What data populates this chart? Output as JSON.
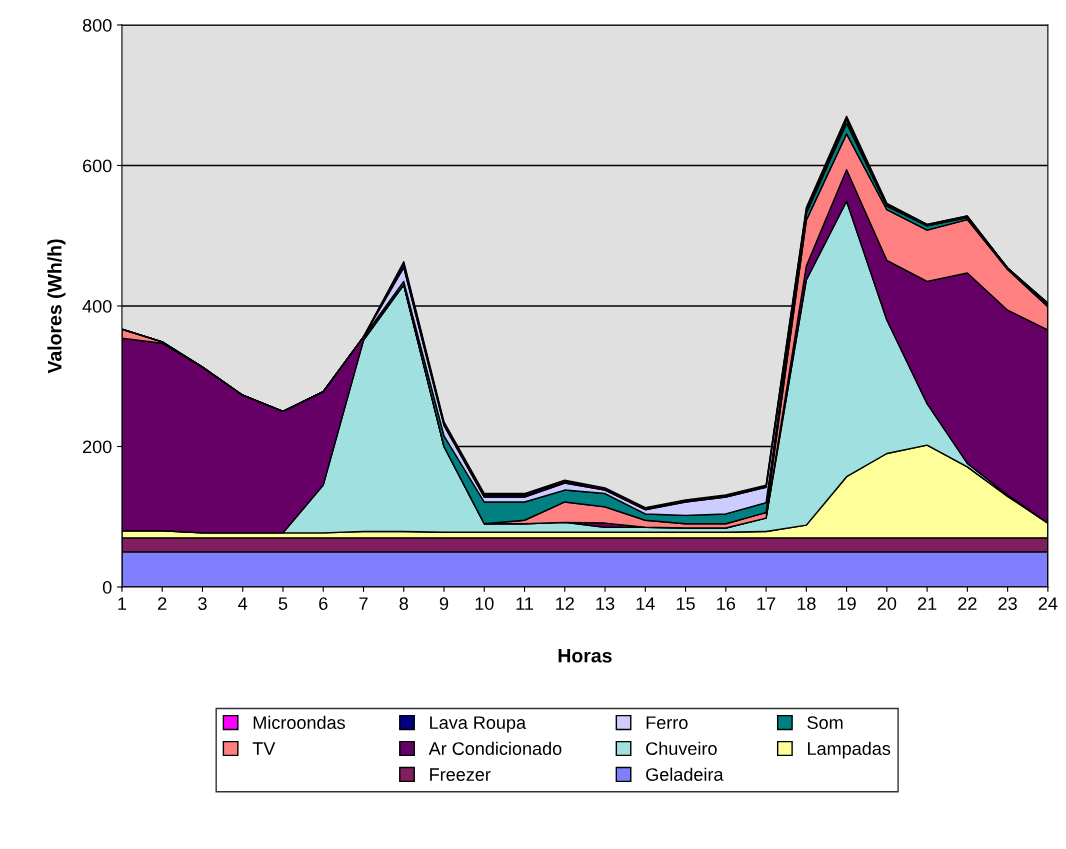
{
  "chart_data": {
    "type": "area",
    "stacked": true,
    "xlabel": "Horas",
    "ylabel": "Valores (Wh/h)",
    "x": [
      1,
      2,
      3,
      4,
      5,
      6,
      7,
      8,
      9,
      10,
      11,
      12,
      13,
      14,
      15,
      16,
      17,
      18,
      19,
      20,
      21,
      22,
      23,
      24
    ],
    "xlim": [
      1,
      24
    ],
    "xticks": [
      1,
      2,
      3,
      4,
      5,
      6,
      7,
      8,
      9,
      10,
      11,
      12,
      13,
      14,
      15,
      16,
      17,
      18,
      19,
      20,
      21,
      22,
      23,
      24
    ],
    "ylim": [
      0,
      800
    ],
    "yticks": [
      0,
      200,
      400,
      600,
      800
    ],
    "grid": "y",
    "legend": "bottom",
    "series": [
      {
        "name": "Geladeira",
        "color": "#8080ff",
        "values": [
          50,
          50,
          50,
          50,
          50,
          50,
          50,
          50,
          50,
          50,
          50,
          50,
          50,
          50,
          50,
          50,
          50,
          50,
          50,
          50,
          50,
          50,
          50,
          50
        ]
      },
      {
        "name": "Freezer",
        "color": "#7f1f5f",
        "values": [
          20,
          20,
          20,
          20,
          20,
          20,
          20,
          20,
          20,
          20,
          20,
          20,
          20,
          20,
          20,
          20,
          20,
          20,
          20,
          20,
          20,
          20,
          20,
          20
        ]
      },
      {
        "name": "Lampadas",
        "color": "#ffff99",
        "values": [
          10,
          10,
          7,
          7,
          7,
          7,
          9,
          9,
          8,
          8,
          8,
          8,
          8,
          8,
          8,
          8,
          9,
          18,
          87,
          120,
          132,
          101,
          59,
          21
        ]
      },
      {
        "name": "Chuveiro",
        "color": "#a0e0e0",
        "values": [
          0,
          0,
          0,
          0,
          0,
          68,
          272,
          351,
          122,
          12,
          12,
          14,
          7,
          7,
          6,
          6,
          19,
          349,
          392,
          190,
          59,
          5,
          2,
          0
        ]
      },
      {
        "name": "Ar Condicionado",
        "color": "#660066",
        "values": [
          274,
          267,
          236,
          196,
          173,
          133,
          5,
          0,
          0,
          0,
          0,
          0,
          6,
          0,
          0,
          0,
          0,
          20,
          45,
          85,
          174,
          271,
          263,
          275
        ]
      },
      {
        "name": "TV",
        "color": "#ff8080",
        "values": [
          13,
          2,
          0,
          0,
          0,
          0,
          0,
          0,
          0,
          0,
          5,
          29,
          23,
          10,
          6,
          6,
          8,
          65,
          51,
          72,
          73,
          76,
          58,
          33
        ]
      },
      {
        "name": "Som",
        "color": "#008080",
        "values": [
          0,
          0,
          0,
          0,
          0,
          0,
          0,
          5,
          15,
          31,
          26,
          17,
          19,
          9,
          12,
          14,
          14,
          10,
          15,
          5,
          6,
          3,
          2,
          3
        ]
      },
      {
        "name": "Ferro",
        "color": "#ccccff",
        "values": [
          0,
          0,
          0,
          0,
          0,
          0,
          0,
          20,
          15,
          7,
          7,
          10,
          5,
          6,
          19,
          24,
          22,
          4,
          5,
          2,
          1,
          1,
          0,
          1
        ]
      },
      {
        "name": "Lava Roupa",
        "color": "#000080",
        "values": [
          0,
          0,
          0,
          0,
          0,
          0,
          0,
          6,
          3,
          3,
          3,
          2,
          1,
          1,
          1,
          1,
          1,
          2,
          3,
          1,
          1,
          1,
          0,
          1
        ]
      },
      {
        "name": "Microondas",
        "color": "#ff00ff",
        "values": [
          0,
          0,
          0,
          0,
          0,
          0,
          0,
          2,
          2,
          2,
          2,
          2,
          2,
          2,
          2,
          2,
          2,
          2,
          2,
          1,
          0,
          0,
          0,
          0
        ]
      }
    ]
  }
}
